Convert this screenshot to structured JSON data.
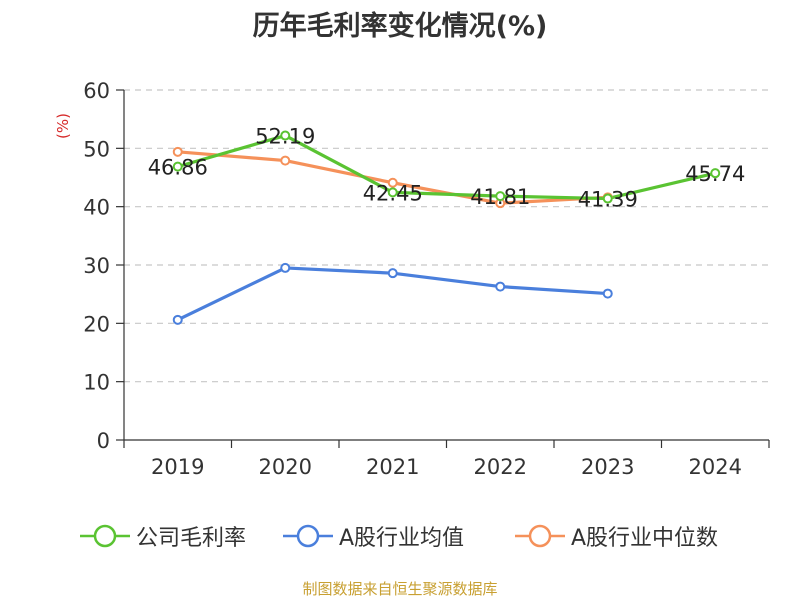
{
  "title": "历年毛利率变化情况(%)",
  "source": "制图数据来自恒生聚源数据库",
  "chart_data": {
    "type": "line",
    "title": "历年毛利率变化情况(%)",
    "ylabel": "(%)",
    "xlabel": "",
    "ylim": [
      0,
      60
    ],
    "yticks": [
      0,
      10,
      20,
      30,
      40,
      50,
      60
    ],
    "grid": true,
    "legend_position": "bottom",
    "categories": [
      "2019",
      "2020",
      "2021",
      "2022",
      "2023",
      "2024"
    ],
    "series": [
      {
        "name": "公司毛利率",
        "color": "#5ac332",
        "values": [
          46.86,
          52.19,
          42.45,
          41.81,
          41.39,
          45.74
        ],
        "labels": [
          "46.86",
          "52.19",
          "42.45",
          "41.81",
          "41.39",
          "45.74"
        ]
      },
      {
        "name": "A股行业均值",
        "color": "#4a7fdc",
        "values": [
          20.6,
          29.5,
          28.6,
          26.3,
          25.1,
          null
        ]
      },
      {
        "name": "A股行业中位数",
        "color": "#f5915a",
        "values": [
          49.4,
          47.9,
          44.1,
          40.6,
          41.6,
          null
        ]
      }
    ]
  }
}
